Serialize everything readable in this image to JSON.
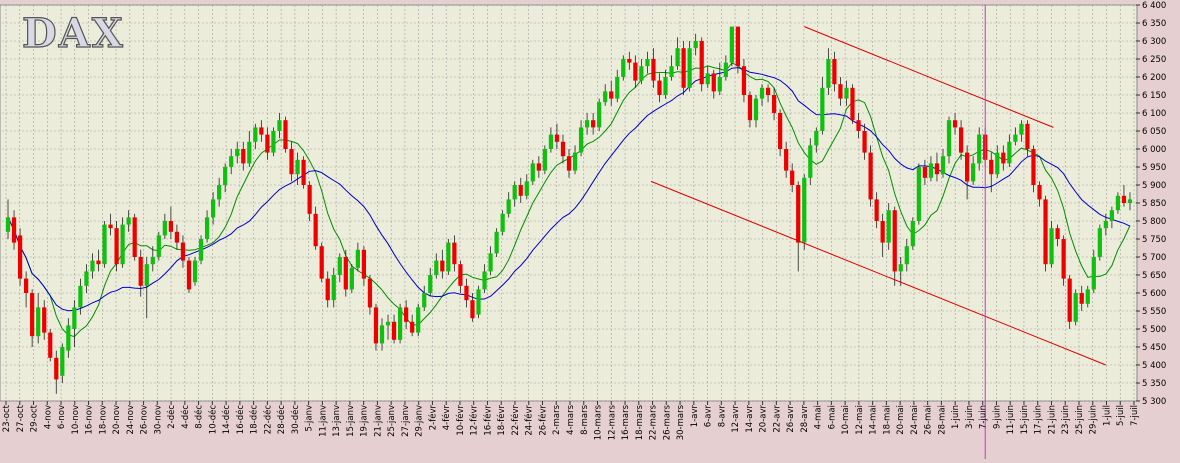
{
  "colors": {
    "background": "#e6cfd0",
    "plot_bg": "#ececda",
    "up_candle": "#10c010",
    "down_candle": "#ee0000",
    "ma_short": "#009000",
    "ma_long": "#0000cc",
    "trend_line": "#dd0000",
    "marker_line": "#cc33cc",
    "grid": "#a0a0a0"
  },
  "chart_data": {
    "type": "candlestick",
    "title": "DAX",
    "ylim": [
      5300,
      6400
    ],
    "y_ticks": [
      "6 400",
      "6 350",
      "6 300",
      "6 250",
      "6 200",
      "6 150",
      "6 100",
      "6 050",
      "6 000",
      "5 950",
      "5 900",
      "5 850",
      "5 800",
      "5 750",
      "5 700",
      "5 650",
      "5 600",
      "5 550",
      "5 500",
      "5 450",
      "5 400",
      "5 350",
      "5 300"
    ],
    "x_tick_labels": [
      "23-oct",
      "27-oct",
      "29-oct",
      "4-nov",
      "6-nov",
      "10-nov",
      "16-nov",
      "18-nov",
      "20-nov",
      "24-nov",
      "26-nov",
      "30-nov",
      "2-déc",
      "4-déc",
      "8-déc",
      "10-déc",
      "14-déc",
      "16-déc",
      "18-déc",
      "22-déc",
      "28-déc",
      "30-déc",
      "5-janv",
      "11-janv",
      "13-janv",
      "15-janv",
      "19-janv",
      "21-janv",
      "25-janv",
      "27-janv",
      "29-janv",
      "2-févr",
      "4-févr",
      "10-févr",
      "12-févr",
      "16-févr",
      "18-févr",
      "22-févr",
      "24-févr",
      "26-févr",
      "2-mars",
      "4-mars",
      "8-mars",
      "10-mars",
      "12-mars",
      "16-mars",
      "18-mars",
      "22-mars",
      "26-mars",
      "30-mars",
      "1-avr",
      "6-avr",
      "8-avr",
      "12-avr",
      "14-avr",
      "20-avr",
      "22-avr",
      "26-avr",
      "28-avr",
      "4-mai",
      "6-mai",
      "10-mai",
      "12-mai",
      "14-mai",
      "18-mai",
      "20-mai",
      "24-mai",
      "26-mai",
      "28-mai",
      "1-juin",
      "3-juin",
      "7-juin",
      "9-juin",
      "11-juin",
      "15-juin",
      "17-juin",
      "21-juin",
      "23-juin",
      "25-juin",
      "29-juin",
      "1-juil",
      "5-juil",
      "7-juil"
    ],
    "candles": [
      {
        "o": 5770,
        "c": 5810,
        "h": 5860,
        "l": 5750
      },
      {
        "o": 5810,
        "c": 5740,
        "h": 5830,
        "l": 5720
      },
      {
        "o": 5760,
        "c": 5640,
        "h": 5780,
        "l": 5620
      },
      {
        "o": 5640,
        "c": 5600,
        "h": 5660,
        "l": 5560
      },
      {
        "o": 5600,
        "c": 5480,
        "h": 5610,
        "l": 5450
      },
      {
        "o": 5480,
        "c": 5560,
        "h": 5600,
        "l": 5460
      },
      {
        "o": 5560,
        "c": 5490,
        "h": 5580,
        "l": 5470
      },
      {
        "o": 5490,
        "c": 5420,
        "h": 5500,
        "l": 5410
      },
      {
        "o": 5420,
        "c": 5360,
        "h": 5440,
        "l": 5320
      },
      {
        "o": 5370,
        "c": 5450,
        "h": 5460,
        "l": 5350
      },
      {
        "o": 5440,
        "c": 5510,
        "h": 5530,
        "l": 5420
      },
      {
        "o": 5500,
        "c": 5560,
        "h": 5580,
        "l": 5450
      },
      {
        "o": 5560,
        "c": 5620,
        "h": 5640,
        "l": 5540
      },
      {
        "o": 5620,
        "c": 5660,
        "h": 5680,
        "l": 5600
      },
      {
        "o": 5660,
        "c": 5690,
        "h": 5710,
        "l": 5640
      },
      {
        "o": 5690,
        "c": 5680,
        "h": 5720,
        "l": 5660
      },
      {
        "o": 5680,
        "c": 5790,
        "h": 5800,
        "l": 5670
      },
      {
        "o": 5790,
        "c": 5780,
        "h": 5820,
        "l": 5760
      },
      {
        "o": 5780,
        "c": 5680,
        "h": 5800,
        "l": 5660
      },
      {
        "o": 5680,
        "c": 5790,
        "h": 5810,
        "l": 5670
      },
      {
        "o": 5790,
        "c": 5810,
        "h": 5830,
        "l": 5770
      },
      {
        "o": 5810,
        "c": 5700,
        "h": 5820,
        "l": 5690
      },
      {
        "o": 5700,
        "c": 5620,
        "h": 5720,
        "l": 5590
      },
      {
        "o": 5620,
        "c": 5680,
        "h": 5700,
        "l": 5530
      },
      {
        "o": 5680,
        "c": 5700,
        "h": 5730,
        "l": 5660
      },
      {
        "o": 5700,
        "c": 5760,
        "h": 5770,
        "l": 5690
      },
      {
        "o": 5760,
        "c": 5800,
        "h": 5820,
        "l": 5750
      },
      {
        "o": 5800,
        "c": 5770,
        "h": 5840,
        "l": 5750
      },
      {
        "o": 5770,
        "c": 5740,
        "h": 5790,
        "l": 5720
      },
      {
        "o": 5740,
        "c": 5690,
        "h": 5760,
        "l": 5670
      },
      {
        "o": 5690,
        "c": 5610,
        "h": 5700,
        "l": 5600
      },
      {
        "o": 5630,
        "c": 5690,
        "h": 5700,
        "l": 5620
      },
      {
        "o": 5690,
        "c": 5750,
        "h": 5760,
        "l": 5680
      },
      {
        "o": 5750,
        "c": 5810,
        "h": 5830,
        "l": 5740
      },
      {
        "o": 5810,
        "c": 5860,
        "h": 5880,
        "l": 5790
      },
      {
        "o": 5860,
        "c": 5900,
        "h": 5920,
        "l": 5840
      },
      {
        "o": 5900,
        "c": 5950,
        "h": 5960,
        "l": 5880
      },
      {
        "o": 5950,
        "c": 5980,
        "h": 6000,
        "l": 5930
      },
      {
        "o": 5980,
        "c": 6000,
        "h": 6020,
        "l": 5960
      },
      {
        "o": 6000,
        "c": 5960,
        "h": 6020,
        "l": 5940
      },
      {
        "o": 5960,
        "c": 6020,
        "h": 6050,
        "l": 5950
      },
      {
        "o": 6020,
        "c": 6060,
        "h": 6070,
        "l": 6000
      },
      {
        "o": 6060,
        "c": 6040,
        "h": 6080,
        "l": 6020
      },
      {
        "o": 6040,
        "c": 5990,
        "h": 6060,
        "l": 5970
      },
      {
        "o": 5990,
        "c": 6050,
        "h": 6060,
        "l": 5980
      },
      {
        "o": 6050,
        "c": 6080,
        "h": 6100,
        "l": 6030
      },
      {
        "o": 6080,
        "c": 6000,
        "h": 6090,
        "l": 5990
      },
      {
        "o": 6000,
        "c": 5930,
        "h": 6020,
        "l": 5910
      },
      {
        "o": 5930,
        "c": 5970,
        "h": 5990,
        "l": 5900
      },
      {
        "o": 5970,
        "c": 5900,
        "h": 5980,
        "l": 5890
      },
      {
        "o": 5900,
        "c": 5820,
        "h": 5910,
        "l": 5800
      },
      {
        "o": 5820,
        "c": 5730,
        "h": 5840,
        "l": 5720
      },
      {
        "o": 5730,
        "c": 5640,
        "h": 5740,
        "l": 5630
      },
      {
        "o": 5640,
        "c": 5580,
        "h": 5660,
        "l": 5560
      },
      {
        "o": 5580,
        "c": 5650,
        "h": 5670,
        "l": 5560
      },
      {
        "o": 5650,
        "c": 5700,
        "h": 5710,
        "l": 5630
      },
      {
        "o": 5700,
        "c": 5610,
        "h": 5720,
        "l": 5590
      },
      {
        "o": 5610,
        "c": 5670,
        "h": 5680,
        "l": 5600
      },
      {
        "o": 5670,
        "c": 5720,
        "h": 5740,
        "l": 5660
      },
      {
        "o": 5720,
        "c": 5640,
        "h": 5730,
        "l": 5620
      },
      {
        "o": 5640,
        "c": 5560,
        "h": 5650,
        "l": 5540
      },
      {
        "o": 5560,
        "c": 5460,
        "h": 5570,
        "l": 5440
      },
      {
        "o": 5460,
        "c": 5510,
        "h": 5530,
        "l": 5440
      },
      {
        "o": 5510,
        "c": 5520,
        "h": 5540,
        "l": 5470
      },
      {
        "o": 5520,
        "c": 5470,
        "h": 5540,
        "l": 5460
      },
      {
        "o": 5470,
        "c": 5560,
        "h": 5570,
        "l": 5460
      },
      {
        "o": 5560,
        "c": 5520,
        "h": 5580,
        "l": 5500
      },
      {
        "o": 5520,
        "c": 5490,
        "h": 5540,
        "l": 5480
      },
      {
        "o": 5490,
        "c": 5560,
        "h": 5570,
        "l": 5480
      },
      {
        "o": 5560,
        "c": 5600,
        "h": 5620,
        "l": 5550
      },
      {
        "o": 5600,
        "c": 5650,
        "h": 5670,
        "l": 5590
      },
      {
        "o": 5650,
        "c": 5690,
        "h": 5710,
        "l": 5640
      },
      {
        "o": 5690,
        "c": 5660,
        "h": 5720,
        "l": 5640
      },
      {
        "o": 5660,
        "c": 5740,
        "h": 5750,
        "l": 5650
      },
      {
        "o": 5740,
        "c": 5680,
        "h": 5760,
        "l": 5660
      },
      {
        "o": 5680,
        "c": 5620,
        "h": 5690,
        "l": 5600
      },
      {
        "o": 5620,
        "c": 5580,
        "h": 5640,
        "l": 5560
      },
      {
        "o": 5580,
        "c": 5530,
        "h": 5600,
        "l": 5520
      },
      {
        "o": 5540,
        "c": 5610,
        "h": 5620,
        "l": 5530
      },
      {
        "o": 5610,
        "c": 5660,
        "h": 5680,
        "l": 5600
      },
      {
        "o": 5660,
        "c": 5710,
        "h": 5730,
        "l": 5650
      },
      {
        "o": 5710,
        "c": 5770,
        "h": 5780,
        "l": 5700
      },
      {
        "o": 5770,
        "c": 5820,
        "h": 5830,
        "l": 5760
      },
      {
        "o": 5820,
        "c": 5860,
        "h": 5880,
        "l": 5810
      },
      {
        "o": 5860,
        "c": 5900,
        "h": 5910,
        "l": 5840
      },
      {
        "o": 5900,
        "c": 5870,
        "h": 5920,
        "l": 5850
      },
      {
        "o": 5870,
        "c": 5910,
        "h": 5930,
        "l": 5860
      },
      {
        "o": 5910,
        "c": 5960,
        "h": 5970,
        "l": 5900
      },
      {
        "o": 5960,
        "c": 5940,
        "h": 5980,
        "l": 5920
      },
      {
        "o": 5940,
        "c": 6000,
        "h": 6010,
        "l": 5930
      },
      {
        "o": 6000,
        "c": 6040,
        "h": 6060,
        "l": 5990
      },
      {
        "o": 6040,
        "c": 6020,
        "h": 6070,
        "l": 6000
      },
      {
        "o": 6020,
        "c": 5980,
        "h": 6040,
        "l": 5960
      },
      {
        "o": 5980,
        "c": 5940,
        "h": 6000,
        "l": 5920
      },
      {
        "o": 5940,
        "c": 5990,
        "h": 6010,
        "l": 5930
      },
      {
        "o": 5990,
        "c": 6060,
        "h": 6080,
        "l": 5980
      },
      {
        "o": 6060,
        "c": 6080,
        "h": 6100,
        "l": 6040
      },
      {
        "o": 6080,
        "c": 6060,
        "h": 6100,
        "l": 6040
      },
      {
        "o": 6060,
        "c": 6130,
        "h": 6140,
        "l": 6050
      },
      {
        "o": 6130,
        "c": 6160,
        "h": 6180,
        "l": 6120
      },
      {
        "o": 6160,
        "c": 6140,
        "h": 6190,
        "l": 6120
      },
      {
        "o": 6140,
        "c": 6200,
        "h": 6220,
        "l": 6130
      },
      {
        "o": 6200,
        "c": 6250,
        "h": 6260,
        "l": 6190
      },
      {
        "o": 6250,
        "c": 6240,
        "h": 6270,
        "l": 6220
      },
      {
        "o": 6240,
        "c": 6190,
        "h": 6260,
        "l": 6170
      },
      {
        "o": 6190,
        "c": 6230,
        "h": 6250,
        "l": 6180
      },
      {
        "o": 6230,
        "c": 6250,
        "h": 6270,
        "l": 6210
      },
      {
        "o": 6250,
        "c": 6190,
        "h": 6280,
        "l": 6170
      },
      {
        "o": 6190,
        "c": 6150,
        "h": 6210,
        "l": 6130
      },
      {
        "o": 6150,
        "c": 6200,
        "h": 6220,
        "l": 6140
      },
      {
        "o": 6200,
        "c": 6230,
        "h": 6260,
        "l": 6190
      },
      {
        "o": 6230,
        "c": 6280,
        "h": 6310,
        "l": 6220
      },
      {
        "o": 6280,
        "c": 6170,
        "h": 6300,
        "l": 6150
      },
      {
        "o": 6170,
        "c": 6280,
        "h": 6300,
        "l": 6160
      },
      {
        "o": 6280,
        "c": 6300,
        "h": 6320,
        "l": 6260
      },
      {
        "o": 6300,
        "c": 6180,
        "h": 6310,
        "l": 6160
      },
      {
        "o": 6180,
        "c": 6210,
        "h": 6230,
        "l": 6170
      },
      {
        "o": 6210,
        "c": 6160,
        "h": 6220,
        "l": 6140
      },
      {
        "o": 6160,
        "c": 6200,
        "h": 6240,
        "l": 6150
      },
      {
        "o": 6200,
        "c": 6240,
        "h": 6260,
        "l": 6190
      },
      {
        "o": 6240,
        "c": 6340,
        "h": 6340,
        "l": 6230
      },
      {
        "o": 6340,
        "c": 6230,
        "h": 6340,
        "l": 6210
      },
      {
        "o": 6230,
        "c": 6150,
        "h": 6250,
        "l": 6130
      },
      {
        "o": 6150,
        "c": 6080,
        "h": 6160,
        "l": 6060
      },
      {
        "o": 6080,
        "c": 6140,
        "h": 6150,
        "l": 6060
      },
      {
        "o": 6140,
        "c": 6170,
        "h": 6180,
        "l": 6120
      },
      {
        "o": 6170,
        "c": 6150,
        "h": 6180,
        "l": 6130
      },
      {
        "o": 6150,
        "c": 6100,
        "h": 6170,
        "l": 6080
      },
      {
        "o": 6100,
        "c": 6000,
        "h": 6110,
        "l": 5980
      },
      {
        "o": 6000,
        "c": 5940,
        "h": 6020,
        "l": 5920
      },
      {
        "o": 5940,
        "c": 5900,
        "h": 5960,
        "l": 5880
      },
      {
        "o": 5900,
        "c": 5740,
        "h": 5910,
        "l": 5660
      },
      {
        "o": 5740,
        "c": 5920,
        "h": 5930,
        "l": 5720
      },
      {
        "o": 5920,
        "c": 6010,
        "h": 6030,
        "l": 5900
      },
      {
        "o": 6010,
        "c": 6050,
        "h": 6060,
        "l": 5990
      },
      {
        "o": 6050,
        "c": 6170,
        "h": 6200,
        "l": 6040
      },
      {
        "o": 6170,
        "c": 6250,
        "h": 6280,
        "l": 6150
      },
      {
        "o": 6250,
        "c": 6180,
        "h": 6270,
        "l": 6160
      },
      {
        "o": 6180,
        "c": 6140,
        "h": 6200,
        "l": 6120
      },
      {
        "o": 6140,
        "c": 6170,
        "h": 6190,
        "l": 6120
      },
      {
        "o": 6170,
        "c": 6080,
        "h": 6180,
        "l": 6070
      },
      {
        "o": 6080,
        "c": 6050,
        "h": 6100,
        "l": 6030
      },
      {
        "o": 6050,
        "c": 5990,
        "h": 6070,
        "l": 5970
      },
      {
        "o": 5990,
        "c": 5860,
        "h": 6010,
        "l": 5840
      },
      {
        "o": 5860,
        "c": 5800,
        "h": 5880,
        "l": 5780
      },
      {
        "o": 5800,
        "c": 5740,
        "h": 5820,
        "l": 5700
      },
      {
        "o": 5740,
        "c": 5830,
        "h": 5850,
        "l": 5720
      },
      {
        "o": 5830,
        "c": 5660,
        "h": 5840,
        "l": 5620
      },
      {
        "o": 5660,
        "c": 5680,
        "h": 5700,
        "l": 5620
      },
      {
        "o": 5680,
        "c": 5730,
        "h": 5750,
        "l": 5660
      },
      {
        "o": 5730,
        "c": 5800,
        "h": 5810,
        "l": 5720
      },
      {
        "o": 5800,
        "c": 5950,
        "h": 5960,
        "l": 5790
      },
      {
        "o": 5950,
        "c": 5920,
        "h": 5970,
        "l": 5900
      },
      {
        "o": 5920,
        "c": 5960,
        "h": 5980,
        "l": 5910
      },
      {
        "o": 5960,
        "c": 5930,
        "h": 5990,
        "l": 5910
      },
      {
        "o": 5930,
        "c": 5980,
        "h": 6000,
        "l": 5920
      },
      {
        "o": 5980,
        "c": 6080,
        "h": 6090,
        "l": 5960
      },
      {
        "o": 6080,
        "c": 6060,
        "h": 6100,
        "l": 6040
      },
      {
        "o": 6060,
        "c": 5990,
        "h": 6080,
        "l": 5970
      },
      {
        "o": 5990,
        "c": 5910,
        "h": 6010,
        "l": 5860
      },
      {
        "o": 5910,
        "c": 5960,
        "h": 5980,
        "l": 5900
      },
      {
        "o": 5960,
        "c": 6040,
        "h": 6060,
        "l": 5940
      },
      {
        "o": 6040,
        "c": 5970,
        "h": 6060,
        "l": 5950
      },
      {
        "o": 5970,
        "c": 5930,
        "h": 5990,
        "l": 5880
      },
      {
        "o": 5930,
        "c": 5990,
        "h": 6010,
        "l": 5920
      },
      {
        "o": 5990,
        "c": 5960,
        "h": 6010,
        "l": 5940
      },
      {
        "o": 5960,
        "c": 6020,
        "h": 6040,
        "l": 5950
      },
      {
        "o": 6020,
        "c": 6040,
        "h": 6060,
        "l": 6010
      },
      {
        "o": 6040,
        "c": 6070,
        "h": 6080,
        "l": 6020
      },
      {
        "o": 6070,
        "c": 6000,
        "h": 6080,
        "l": 5980
      },
      {
        "o": 6000,
        "c": 5900,
        "h": 6010,
        "l": 5880
      },
      {
        "o": 5900,
        "c": 5860,
        "h": 5910,
        "l": 5840
      },
      {
        "o": 5860,
        "c": 5680,
        "h": 5870,
        "l": 5660
      },
      {
        "o": 5680,
        "c": 5780,
        "h": 5800,
        "l": 5670
      },
      {
        "o": 5780,
        "c": 5750,
        "h": 5790,
        "l": 5730
      },
      {
        "o": 5750,
        "c": 5640,
        "h": 5760,
        "l": 5620
      },
      {
        "o": 5640,
        "c": 5520,
        "h": 5650,
        "l": 5500
      },
      {
        "o": 5520,
        "c": 5600,
        "h": 5610,
        "l": 5510
      },
      {
        "o": 5600,
        "c": 5570,
        "h": 5620,
        "l": 5550
      },
      {
        "o": 5570,
        "c": 5610,
        "h": 5620,
        "l": 5560
      },
      {
        "o": 5610,
        "c": 5700,
        "h": 5720,
        "l": 5600
      },
      {
        "o": 5700,
        "c": 5780,
        "h": 5790,
        "l": 5690
      },
      {
        "o": 5780,
        "c": 5800,
        "h": 5820,
        "l": 5760
      },
      {
        "o": 5800,
        "c": 5830,
        "h": 5840,
        "l": 5780
      },
      {
        "o": 5830,
        "c": 5870,
        "h": 5880,
        "l": 5820
      },
      {
        "o": 5870,
        "c": 5850,
        "h": 5900,
        "l": 5840
      },
      {
        "o": 5850,
        "c": 5860,
        "h": 5880,
        "l": 5830
      }
    ],
    "trend_lines": [
      {
        "x0": 132.0,
        "y0": 6340,
        "x1": 173.3,
        "y1": 6060
      },
      {
        "x0": 106.6,
        "y0": 5910,
        "x1": 182.0,
        "y1": 5400
      }
    ],
    "marker_at_index": 162.0
  }
}
